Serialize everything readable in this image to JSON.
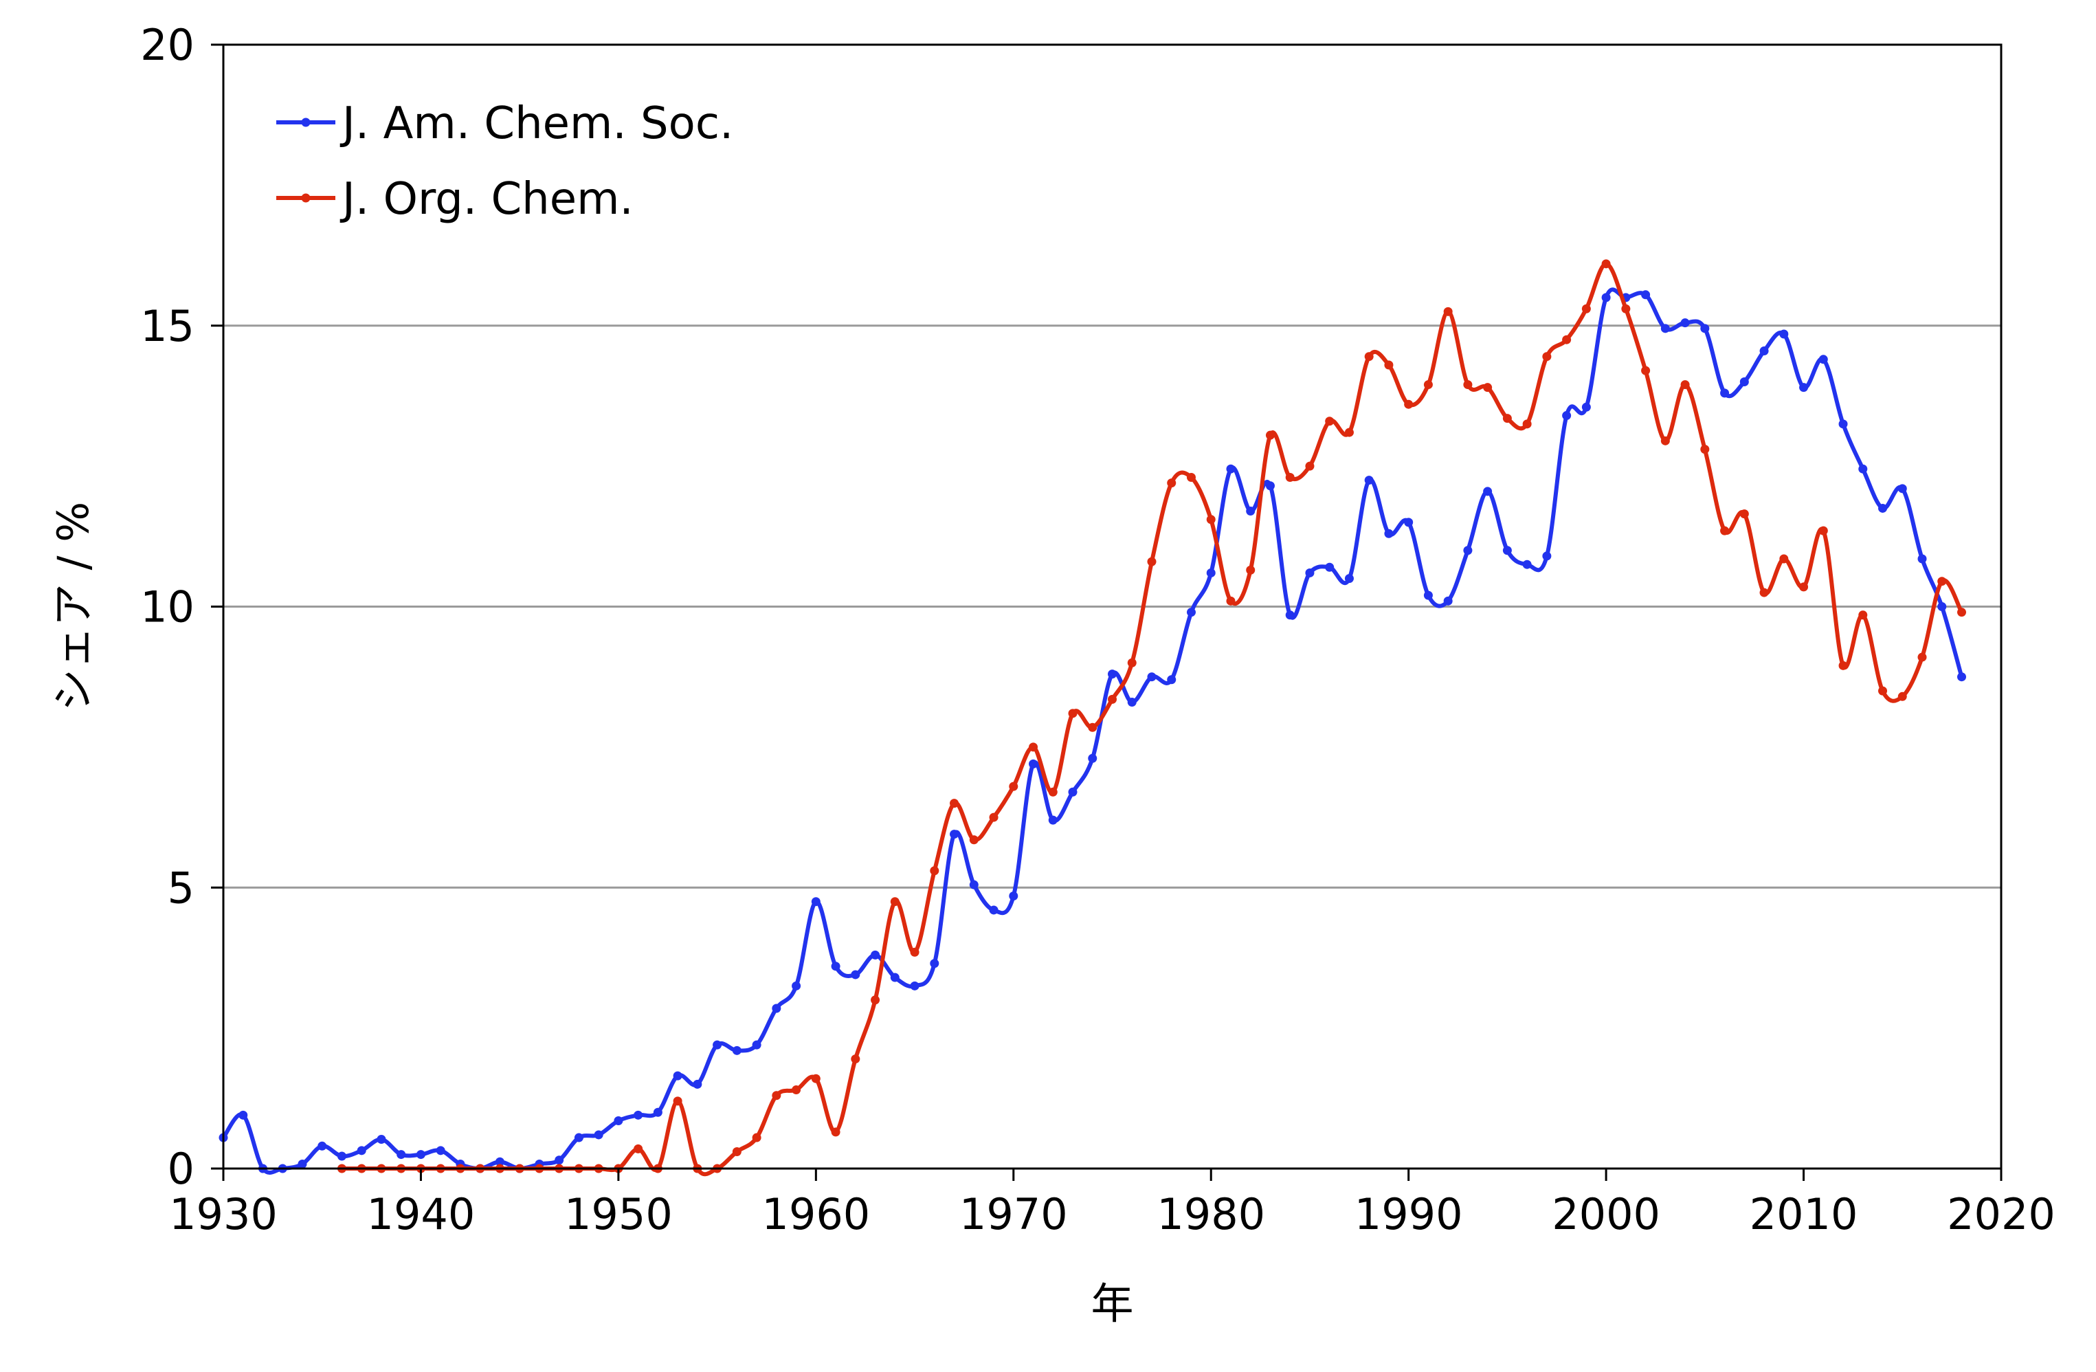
{
  "chart_data": {
    "type": "line",
    "title": "",
    "xlabel": "年",
    "ylabel": "シェア / %",
    "xlim": [
      1930,
      2020
    ],
    "ylim": [
      0,
      20
    ],
    "xticks": [
      "1930",
      "1940",
      "1950",
      "1960",
      "1970",
      "1980",
      "1990",
      "2000",
      "2010",
      "2020"
    ],
    "yticks": [
      "0",
      "5",
      "10",
      "15",
      "20"
    ],
    "grid": "horizontal",
    "legend_position": "top-left",
    "series": [
      {
        "name": "J. Am. Chem. Soc.",
        "color": "#2233ee",
        "x": [
          1930,
          1931,
          1932,
          1933,
          1934,
          1935,
          1936,
          1937,
          1938,
          1939,
          1940,
          1941,
          1942,
          1943,
          1944,
          1945,
          1946,
          1947,
          1948,
          1949,
          1950,
          1951,
          1952,
          1953,
          1954,
          1955,
          1956,
          1957,
          1958,
          1959,
          1960,
          1961,
          1962,
          1963,
          1964,
          1965,
          1966,
          1967,
          1968,
          1969,
          1970,
          1971,
          1972,
          1973,
          1974,
          1975,
          1976,
          1977,
          1978,
          1979,
          1980,
          1981,
          1982,
          1983,
          1984,
          1985,
          1986,
          1987,
          1988,
          1989,
          1990,
          1991,
          1992,
          1993,
          1994,
          1995,
          1996,
          1997,
          1998,
          1999,
          2000,
          2001,
          2002,
          2003,
          2004,
          2005,
          2006,
          2007,
          2008,
          2009,
          2010,
          2011,
          2012,
          2013,
          2014,
          2015,
          2016,
          2017,
          2018
        ],
        "y": [
          0.55,
          0.95,
          0.0,
          0.0,
          0.08,
          0.4,
          0.22,
          0.32,
          0.52,
          0.25,
          0.25,
          0.32,
          0.08,
          0.0,
          0.12,
          0.0,
          0.08,
          0.15,
          0.55,
          0.6,
          0.85,
          0.95,
          1.0,
          1.65,
          1.5,
          2.2,
          2.1,
          2.2,
          2.85,
          3.25,
          4.75,
          3.6,
          3.45,
          3.8,
          3.4,
          3.25,
          3.65,
          5.95,
          5.05,
          4.6,
          4.85,
          7.2,
          6.2,
          6.7,
          7.3,
          8.8,
          8.3,
          8.75,
          8.7,
          9.9,
          10.6,
          12.45,
          11.7,
          12.15,
          9.85,
          10.6,
          10.7,
          10.5,
          12.25,
          11.3,
          11.5,
          10.2,
          10.1,
          11.0,
          12.05,
          11.0,
          10.75,
          10.9,
          13.4,
          13.55,
          15.5,
          15.5,
          15.55,
          14.95,
          15.05,
          14.95,
          13.8,
          14.0,
          14.55,
          14.85,
          13.9,
          14.4,
          13.25,
          12.45,
          11.75,
          12.1,
          10.85,
          10.0,
          8.75
        ]
      },
      {
        "name": "J. Org. Chem.",
        "color": "#dd2a0e",
        "x": [
          1936,
          1937,
          1938,
          1939,
          1940,
          1941,
          1942,
          1943,
          1944,
          1945,
          1946,
          1947,
          1948,
          1949,
          1950,
          1951,
          1952,
          1953,
          1954,
          1955,
          1956,
          1957,
          1958,
          1959,
          1960,
          1961,
          1962,
          1963,
          1964,
          1965,
          1966,
          1967,
          1968,
          1969,
          1970,
          1971,
          1972,
          1973,
          1974,
          1975,
          1976,
          1977,
          1978,
          1979,
          1980,
          1981,
          1982,
          1983,
          1984,
          1985,
          1986,
          1987,
          1988,
          1989,
          1990,
          1991,
          1992,
          1993,
          1994,
          1995,
          1996,
          1997,
          1998,
          1999,
          2000,
          2001,
          2002,
          2003,
          2004,
          2005,
          2006,
          2007,
          2008,
          2009,
          2010,
          2011,
          2012,
          2013,
          2014,
          2015,
          2016,
          2017,
          2018
        ],
        "y": [
          0,
          0,
          0,
          0,
          0,
          0,
          0,
          0,
          0,
          0,
          0,
          0,
          0,
          0,
          0,
          0.35,
          0,
          1.2,
          0,
          0,
          0.3,
          0.55,
          1.3,
          1.4,
          1.6,
          0.65,
          1.95,
          3.0,
          4.75,
          3.85,
          5.3,
          6.5,
          5.85,
          6.25,
          6.8,
          7.5,
          6.7,
          8.1,
          7.85,
          8.35,
          9.0,
          10.8,
          12.2,
          12.3,
          11.55,
          10.1,
          10.65,
          13.05,
          12.3,
          12.5,
          13.3,
          13.1,
          14.45,
          14.3,
          13.6,
          13.95,
          15.25,
          13.95,
          13.9,
          13.35,
          13.25,
          14.45,
          14.75,
          15.3,
          16.1,
          15.3,
          14.2,
          12.95,
          13.95,
          12.8,
          11.35,
          11.65,
          10.25,
          10.85,
          10.35,
          11.35,
          8.95,
          9.85,
          8.5,
          8.4,
          9.1,
          10.45,
          9.9
        ]
      }
    ]
  }
}
